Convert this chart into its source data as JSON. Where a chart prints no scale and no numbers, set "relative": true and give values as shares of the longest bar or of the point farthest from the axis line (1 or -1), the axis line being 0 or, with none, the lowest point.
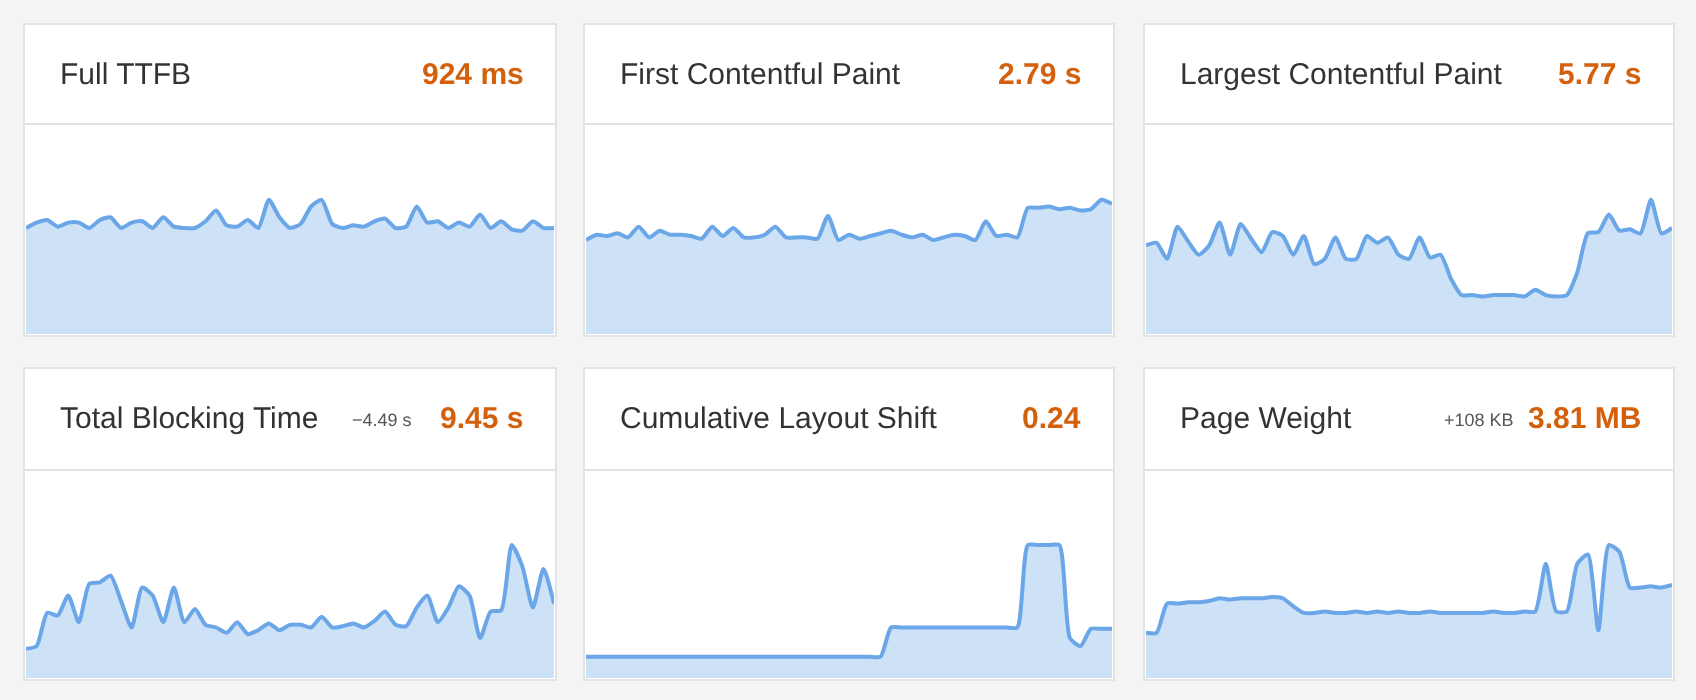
{
  "chart_data": [
    {
      "type": "area",
      "title": "Full TTFB",
      "subtitle": "924 ms",
      "relative": true,
      "categories": [
        null,
        null,
        null,
        null,
        null,
        null,
        null,
        null,
        null,
        null,
        null,
        null,
        null,
        null,
        null,
        null,
        null,
        null,
        null,
        null,
        null,
        null,
        null,
        null,
        null,
        null,
        null,
        null,
        null,
        null,
        null,
        null,
        null,
        null,
        null,
        null,
        null,
        null,
        null,
        null,
        null,
        null,
        null,
        null,
        null,
        null,
        null,
        null,
        null,
        null,
        null
      ],
      "series": [
        {
          "color": "#6aa6e8",
          "values": [
            0.79,
            0.83,
            0.85,
            0.8,
            0.83,
            0.83,
            0.79,
            0.85,
            0.87,
            0.79,
            0.83,
            0.84,
            0.79,
            0.87,
            0.8,
            0.79,
            0.79,
            0.84,
            0.92,
            0.81,
            0.8,
            0.85,
            0.79,
            1.0,
            0.87,
            0.79,
            0.82,
            0.95,
            1.0,
            0.82,
            0.79,
            0.81,
            0.8,
            0.84,
            0.86,
            0.79,
            0.8,
            0.95,
            0.83,
            0.84,
            0.79,
            0.83,
            0.8,
            0.89,
            0.79,
            0.84,
            0.78,
            0.77,
            0.84,
            0.79,
            0.79
          ]
        }
      ]
    },
    {
      "type": "area",
      "title": "First Contentful Paint",
      "subtitle": "2.79 s",
      "relative": true,
      "categories": [
        null,
        null,
        null,
        null,
        null,
        null,
        null,
        null,
        null,
        null,
        null,
        null,
        null,
        null,
        null,
        null,
        null,
        null,
        null,
        null,
        null,
        null,
        null,
        null,
        null,
        null,
        null,
        null,
        null,
        null,
        null,
        null,
        null,
        null,
        null,
        null,
        null,
        null,
        null,
        null,
        null,
        null,
        null,
        null,
        null,
        null,
        null,
        null,
        null,
        null,
        null
      ],
      "series": [
        {
          "color": "#6aa6e8",
          "values": [
            0.7,
            0.74,
            0.73,
            0.75,
            0.72,
            0.8,
            0.72,
            0.77,
            0.74,
            0.74,
            0.73,
            0.71,
            0.8,
            0.73,
            0.79,
            0.72,
            0.72,
            0.74,
            0.8,
            0.72,
            0.72,
            0.72,
            0.71,
            0.88,
            0.7,
            0.74,
            0.71,
            0.73,
            0.75,
            0.77,
            0.74,
            0.72,
            0.74,
            0.7,
            0.72,
            0.74,
            0.73,
            0.7,
            0.84,
            0.73,
            0.74,
            0.72,
            0.94,
            0.94,
            0.95,
            0.93,
            0.94,
            0.92,
            0.93,
            1.0,
            0.97
          ]
        }
      ]
    },
    {
      "type": "area",
      "title": "Largest Contentful Paint",
      "subtitle": "5.77 s",
      "relative": true,
      "categories": [
        null,
        null,
        null,
        null,
        null,
        null,
        null,
        null,
        null,
        null,
        null,
        null,
        null,
        null,
        null,
        null,
        null,
        null,
        null,
        null,
        null,
        null,
        null,
        null,
        null,
        null,
        null,
        null,
        null,
        null,
        null,
        null,
        null,
        null,
        null,
        null,
        null,
        null,
        null,
        null,
        null,
        null,
        null,
        null,
        null,
        null,
        null,
        null,
        null,
        null,
        null
      ],
      "series": [
        {
          "color": "#6aa6e8",
          "values": [
            0.66,
            0.68,
            0.56,
            0.8,
            0.69,
            0.59,
            0.66,
            0.83,
            0.59,
            0.82,
            0.71,
            0.61,
            0.76,
            0.73,
            0.59,
            0.73,
            0.52,
            0.56,
            0.72,
            0.56,
            0.56,
            0.73,
            0.68,
            0.72,
            0.59,
            0.56,
            0.72,
            0.57,
            0.59,
            0.41,
            0.29,
            0.29,
            0.28,
            0.29,
            0.29,
            0.29,
            0.28,
            0.33,
            0.29,
            0.28,
            0.29,
            0.46,
            0.75,
            0.76,
            0.89,
            0.77,
            0.78,
            0.75,
            1.0,
            0.75,
            0.79
          ]
        }
      ]
    },
    {
      "type": "area",
      "title": "Total Blocking Time",
      "subtitle": "9.45 s",
      "annotations": [
        "−4.49 s"
      ],
      "relative": true,
      "categories": [
        null,
        null,
        null,
        null,
        null,
        null,
        null,
        null,
        null,
        null,
        null,
        null,
        null,
        null,
        null,
        null,
        null,
        null,
        null,
        null,
        null,
        null,
        null,
        null,
        null,
        null,
        null,
        null,
        null,
        null,
        null,
        null,
        null,
        null,
        null,
        null,
        null,
        null,
        null,
        null,
        null,
        null,
        null,
        null,
        null,
        null,
        null,
        null,
        null,
        null,
        null
      ],
      "series": [
        {
          "color": "#6aa6e8",
          "values": [
            0.22,
            0.24,
            0.49,
            0.47,
            0.62,
            0.42,
            0.71,
            0.72,
            0.77,
            0.58,
            0.38,
            0.68,
            0.62,
            0.42,
            0.68,
            0.42,
            0.52,
            0.4,
            0.38,
            0.34,
            0.42,
            0.33,
            0.36,
            0.41,
            0.36,
            0.4,
            0.4,
            0.38,
            0.46,
            0.38,
            0.39,
            0.41,
            0.38,
            0.43,
            0.5,
            0.4,
            0.39,
            0.53,
            0.62,
            0.42,
            0.53,
            0.69,
            0.62,
            0.3,
            0.5,
            0.51,
            1.0,
            0.84,
            0.53,
            0.82,
            0.56
          ]
        }
      ]
    },
    {
      "type": "area",
      "title": "Cumulative Layout Shift",
      "subtitle": "0.24",
      "relative": true,
      "categories": [
        null,
        null,
        null,
        null,
        null,
        null,
        null,
        null,
        null,
        null,
        null,
        null,
        null,
        null,
        null,
        null,
        null,
        null,
        null,
        null,
        null,
        null,
        null,
        null,
        null,
        null,
        null,
        null,
        null,
        null,
        null,
        null,
        null,
        null,
        null,
        null,
        null,
        null,
        null,
        null,
        null,
        null,
        null,
        null,
        null,
        null,
        null,
        null,
        null,
        null,
        null
      ],
      "series": [
        {
          "color": "#6aa6e8",
          "values": [
            0.16,
            0.16,
            0.16,
            0.16,
            0.16,
            0.16,
            0.16,
            0.16,
            0.16,
            0.16,
            0.16,
            0.16,
            0.16,
            0.16,
            0.16,
            0.16,
            0.16,
            0.16,
            0.16,
            0.16,
            0.16,
            0.16,
            0.16,
            0.16,
            0.16,
            0.16,
            0.16,
            0.16,
            0.16,
            0.38,
            0.38,
            0.38,
            0.38,
            0.38,
            0.38,
            0.38,
            0.38,
            0.38,
            0.38,
            0.38,
            0.38,
            0.38,
            1.0,
            1.0,
            1.0,
            1.0,
            0.3,
            0.24,
            0.37,
            0.37,
            0.37
          ]
        }
      ]
    },
    {
      "type": "area",
      "title": "Page Weight",
      "subtitle": "3.81 MB",
      "annotations": [
        "+108 KB"
      ],
      "relative": true,
      "categories": [
        null,
        null,
        null,
        null,
        null,
        null,
        null,
        null,
        null,
        null,
        null,
        null,
        null,
        null,
        null,
        null,
        null,
        null,
        null,
        null,
        null,
        null,
        null,
        null,
        null,
        null,
        null,
        null,
        null,
        null,
        null,
        null,
        null,
        null,
        null,
        null,
        null,
        null,
        null,
        null,
        null,
        null,
        null,
        null,
        null,
        null,
        null,
        null,
        null,
        null,
        null
      ],
      "series": [
        {
          "color": "#6aa6e8",
          "values": [
            0.34,
            0.34,
            0.56,
            0.56,
            0.57,
            0.57,
            0.58,
            0.6,
            0.59,
            0.6,
            0.6,
            0.6,
            0.61,
            0.6,
            0.54,
            0.49,
            0.49,
            0.5,
            0.49,
            0.49,
            0.5,
            0.49,
            0.5,
            0.49,
            0.5,
            0.49,
            0.49,
            0.5,
            0.49,
            0.49,
            0.49,
            0.49,
            0.49,
            0.5,
            0.49,
            0.49,
            0.5,
            0.5,
            0.86,
            0.5,
            0.5,
            0.86,
            0.93,
            0.36,
            1.0,
            0.95,
            0.68,
            0.68,
            0.69,
            0.68,
            0.7
          ]
        }
      ]
    }
  ]
}
